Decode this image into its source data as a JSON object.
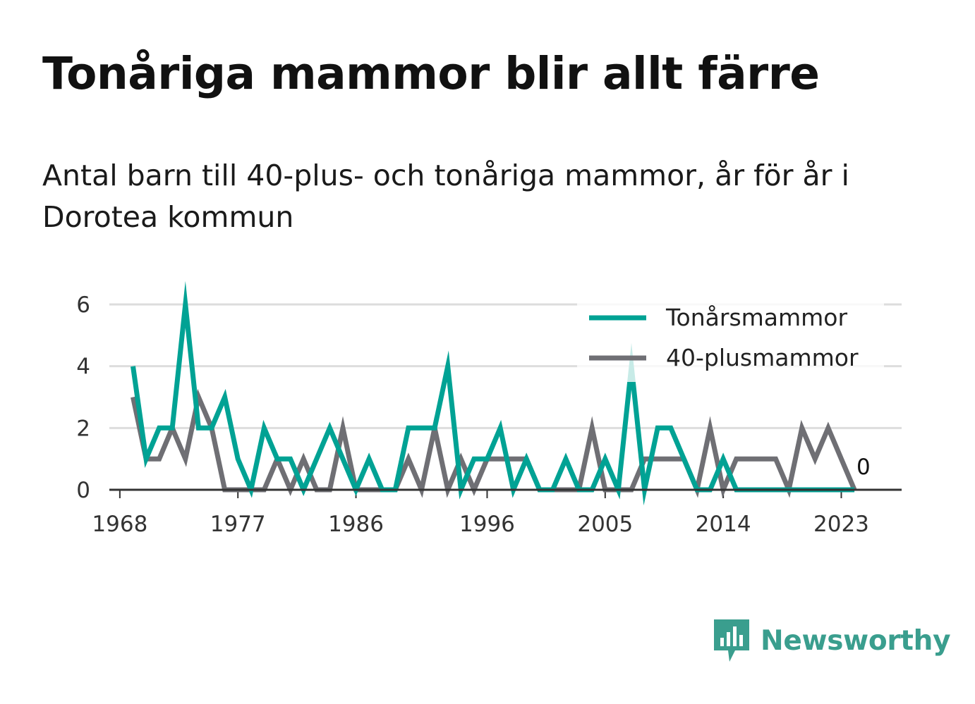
{
  "header": {
    "title": "Tonåriga mammor blir allt färre",
    "subtitle": "Antal barn till 40-plus- och tonåriga mammor, år för år i Dorotea kommun"
  },
  "brand": {
    "name": "Newsworthy",
    "icon": "newsworthy-logo-icon",
    "color": "#3a9e8e"
  },
  "chart_data": {
    "type": "line",
    "x": [
      1969,
      1970,
      1971,
      1972,
      1973,
      1974,
      1975,
      1976,
      1977,
      1978,
      1979,
      1980,
      1981,
      1982,
      1983,
      1984,
      1985,
      1986,
      1987,
      1988,
      1989,
      1990,
      1991,
      1992,
      1993,
      1994,
      1995,
      1996,
      1997,
      1998,
      1999,
      2000,
      2001,
      2002,
      2003,
      2004,
      2005,
      2006,
      2007,
      2008,
      2009,
      2010,
      2011,
      2012,
      2013,
      2014,
      2015,
      2016,
      2017,
      2018,
      2019,
      2020,
      2021,
      2022,
      2023,
      2024
    ],
    "series": [
      {
        "name": "Tonårsmammor",
        "color": "#00a294",
        "values": [
          4,
          1,
          2,
          2,
          6,
          2,
          2,
          3,
          1,
          0,
          2,
          1,
          1,
          0,
          1,
          2,
          1,
          0,
          1,
          0,
          0,
          2,
          2,
          2,
          4,
          0,
          1,
          1,
          2,
          0,
          1,
          0,
          0,
          1,
          0,
          0,
          1,
          0,
          4,
          0,
          2,
          2,
          1,
          0,
          0,
          1,
          0,
          0,
          0,
          0,
          0,
          0,
          0,
          0,
          0,
          0
        ]
      },
      {
        "name": "40-plusmammor",
        "color": "#6f6f74",
        "values": [
          3,
          1,
          1,
          2,
          1,
          3,
          2,
          0,
          0,
          0,
          0,
          1,
          0,
          1,
          0,
          0,
          2,
          0,
          0,
          0,
          0,
          1,
          0,
          2,
          0,
          1,
          0,
          1,
          1,
          1,
          1,
          0,
          0,
          0,
          0,
          2,
          0,
          0,
          0,
          1,
          1,
          1,
          1,
          0,
          2,
          0,
          1,
          1,
          1,
          1,
          0,
          2,
          1,
          2,
          1,
          0
        ]
      }
    ],
    "x_ticks": [
      "1968",
      "1977",
      "1986",
      "1996",
      "2005",
      "2014",
      "2023"
    ],
    "x_tick_values": [
      1968,
      1977,
      1986,
      1996,
      2005,
      2014,
      2023
    ],
    "y_ticks": [
      "0",
      "2",
      "4",
      "6"
    ],
    "y_tick_values": [
      0,
      2,
      4,
      6
    ],
    "ylim": [
      0,
      6
    ],
    "xlim": [
      1967.2,
      2027.6
    ],
    "grid": "horizontal",
    "legend_position": "top-right",
    "end_label": "0"
  }
}
